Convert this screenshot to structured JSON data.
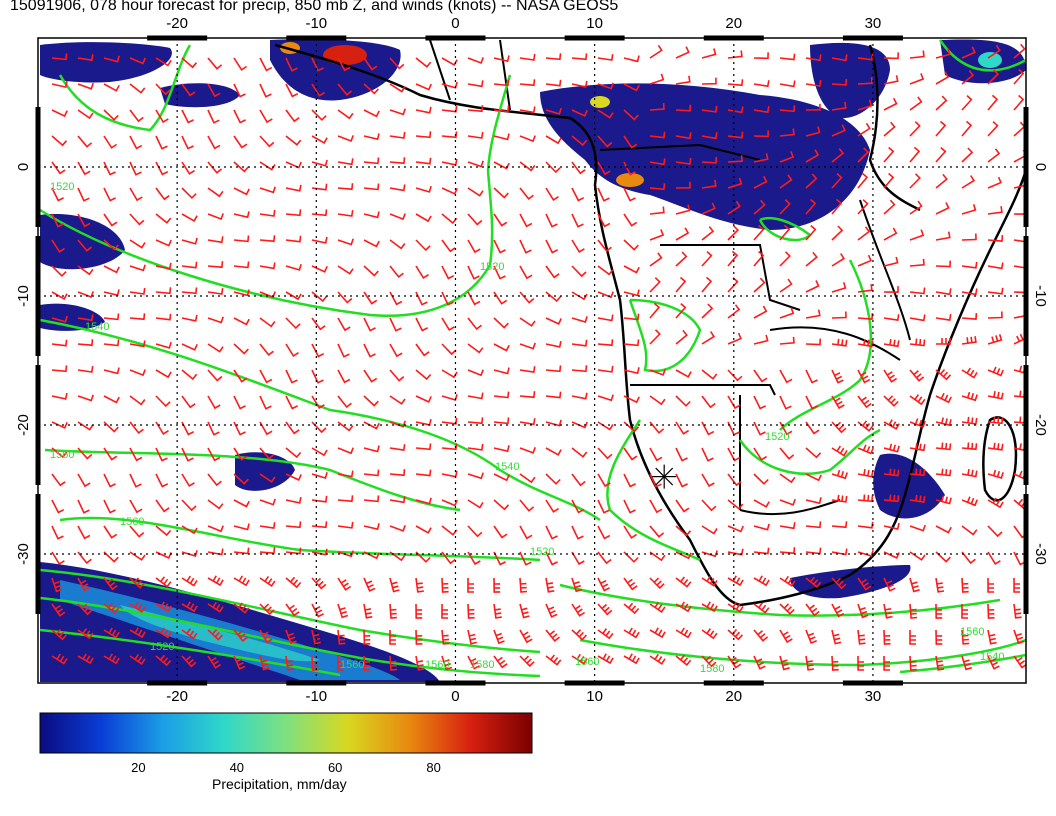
{
  "title": "15091906, 078 hour forecast for precip, 850 mb Z, and winds (knots) -- NASA GEOS5",
  "axes": {
    "lon_ticks": [
      "-20",
      "-10",
      "0",
      "10",
      "20",
      "30"
    ],
    "lat_ticks": [
      "0",
      "-10",
      "-20",
      "-30"
    ],
    "lon_range": [
      -30,
      41
    ],
    "lat_range": [
      -40,
      10
    ]
  },
  "contour_labels": [
    "1520",
    "1520",
    "1540",
    "1560",
    "1540",
    "1560",
    "1520",
    "1520",
    "1560",
    "1560",
    "1580",
    "1560",
    "1580",
    "1560",
    "1540",
    "1520"
  ],
  "colorbar": {
    "title": "Precipitation, mm/day",
    "ticks": [
      "20",
      "40",
      "60",
      "80"
    ],
    "range": [
      0,
      100
    ],
    "colors": [
      "#0b0b80",
      "#0a3dd6",
      "#1b9ee6",
      "#30d8c8",
      "#7fe07f",
      "#d8d820",
      "#e88a10",
      "#d82010",
      "#7a0000"
    ]
  },
  "colors": {
    "precip_low": "#1a1a8c",
    "wind_barb": "#ff1a1a",
    "contour": "#22dd22",
    "coast": "#000000",
    "grid": "#000000"
  },
  "map_data": {
    "type": "weather-map",
    "variables": [
      "precipitation",
      "850 mb geopotential height",
      "wind barbs"
    ],
    "units": {
      "precip": "mm/day",
      "height": "m",
      "wind": "knots"
    },
    "grid_lines": true,
    "marker": {
      "lon": 15,
      "lat": -24,
      "type": "star-marker"
    }
  }
}
